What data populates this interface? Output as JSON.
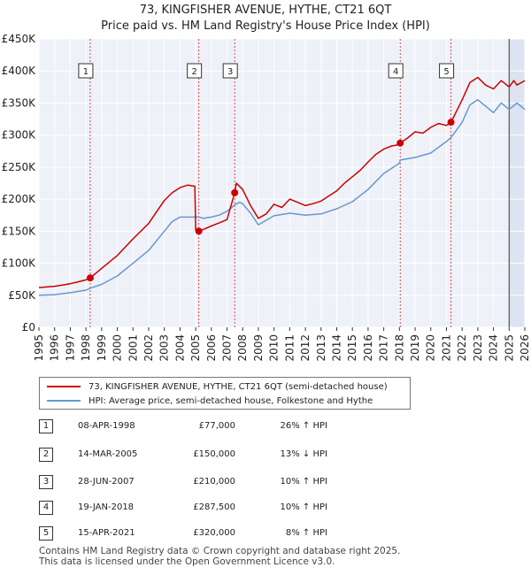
{
  "chart_data": {
    "type": "line",
    "title": "73, KINGFISHER AVENUE, HYTHE, CT21 6QT",
    "subtitle": "Price paid vs. HM Land Registry's House Price Index (HPI)",
    "xlim": [
      1995,
      2026
    ],
    "ylim": [
      0,
      450000
    ],
    "y_ticks": [
      {
        "value": 0,
        "label": "£0"
      },
      {
        "value": 50000,
        "label": "£50K"
      },
      {
        "value": 100000,
        "label": "£100K"
      },
      {
        "value": 150000,
        "label": "£150K"
      },
      {
        "value": 200000,
        "label": "£200K"
      },
      {
        "value": 250000,
        "label": "£250K"
      },
      {
        "value": 300000,
        "label": "£300K"
      },
      {
        "value": 350000,
        "label": "£350K"
      },
      {
        "value": 400000,
        "label": "£400K"
      },
      {
        "value": 450000,
        "label": "£450K"
      }
    ],
    "x_ticks": [
      "1995",
      "1996",
      "1997",
      "1998",
      "1999",
      "2000",
      "2001",
      "2002",
      "2003",
      "2004",
      "2005",
      "2006",
      "2007",
      "2008",
      "2009",
      "2010",
      "2011",
      "2012",
      "2013",
      "2014",
      "2015",
      "2016",
      "2017",
      "2018",
      "2019",
      "2020",
      "2021",
      "2022",
      "2023",
      "2024",
      "2025",
      "2026"
    ],
    "forecast_from": 2025.0,
    "colors": {
      "property": "#cc0000",
      "hpi": "#6699cc",
      "grid": "#dddddd",
      "plot_bg": "#eef1f8",
      "highlight_bg": "#dde3f0",
      "vline": "#dd4444"
    },
    "series": [
      {
        "name": "73, KINGFISHER AVENUE, HYTHE, CT21 6QT (semi-detached house)",
        "key": "property",
        "x": [
          1995.0,
          1995.5,
          1996.0,
          1996.5,
          1997.0,
          1997.5,
          1998.0,
          1998.27,
          1999.0,
          2000.0,
          2001.0,
          2002.0,
          2002.5,
          2003.0,
          2003.5,
          2004.0,
          2004.5,
          2004.95,
          2005.0,
          2005.2,
          2005.5,
          2006.0,
          2006.5,
          2007.0,
          2007.49,
          2007.6,
          2008.0,
          2008.5,
          2009.0,
          2009.5,
          2010.0,
          2010.5,
          2011.0,
          2011.5,
          2012.0,
          2012.5,
          2013.0,
          2013.5,
          2014.0,
          2014.5,
          2015.0,
          2015.5,
          2016.0,
          2016.5,
          2017.0,
          2017.5,
          2018.0,
          2018.05,
          2018.5,
          2019.0,
          2019.5,
          2020.0,
          2020.5,
          2021.0,
          2021.29,
          2021.5,
          2022.0,
          2022.5,
          2023.0,
          2023.5,
          2024.0,
          2024.5,
          2025.0,
          2025.3,
          2025.5,
          2026.0
        ],
        "y": [
          62000,
          63000,
          64000,
          66000,
          68000,
          71000,
          74000,
          77000,
          92000,
          112000,
          138000,
          162000,
          180000,
          198000,
          210000,
          218000,
          222000,
          220000,
          152000,
          150000,
          153000,
          158000,
          163000,
          168000,
          210000,
          225000,
          215000,
          190000,
          170000,
          177000,
          192000,
          187000,
          200000,
          195000,
          190000,
          193000,
          197000,
          205000,
          213000,
          225000,
          235000,
          245000,
          258000,
          270000,
          278000,
          283000,
          285000,
          287500,
          295000,
          305000,
          303000,
          312000,
          318000,
          315000,
          320000,
          330000,
          355000,
          382000,
          390000,
          378000,
          372000,
          385000,
          375000,
          385000,
          378000,
          385000
        ]
      },
      {
        "name": "HPI: Average price, semi-detached house, Folkestone and Hythe",
        "key": "hpi",
        "x": [
          1995.0,
          1996.0,
          1997.0,
          1998.0,
          1998.27,
          1999.0,
          2000.0,
          2001.0,
          2002.0,
          2003.0,
          2003.5,
          2004.0,
          2004.5,
          2005.0,
          2005.2,
          2005.5,
          2006.0,
          2006.5,
          2007.0,
          2007.49,
          2007.8,
          2008.0,
          2008.5,
          2009.0,
          2009.5,
          2010.0,
          2011.0,
          2012.0,
          2013.0,
          2014.0,
          2015.0,
          2016.0,
          2017.0,
          2018.0,
          2018.05,
          2019.0,
          2020.0,
          2021.0,
          2021.29,
          2022.0,
          2022.5,
          2023.0,
          2023.5,
          2024.0,
          2024.5,
          2025.0,
          2025.5,
          2026.0
        ],
        "y": [
          50000,
          51000,
          54000,
          58000,
          61000,
          67000,
          80000,
          100000,
          120000,
          150000,
          165000,
          172000,
          172000,
          172000,
          172000,
          170000,
          172000,
          175000,
          181000,
          191000,
          195000,
          193000,
          178000,
          160000,
          167000,
          174000,
          178000,
          175000,
          177000,
          185000,
          196000,
          215000,
          240000,
          256000,
          261000,
          265000,
          272000,
          290000,
          296000,
          320000,
          347000,
          355000,
          345000,
          335000,
          350000,
          340000,
          350000,
          340000
        ]
      }
    ],
    "sales": [
      {
        "n": "1",
        "x": 1998.27,
        "price": 77000,
        "date": "08-APR-1998",
        "price_label": "£77,000",
        "hpi_label": "26% ↑ HPI"
      },
      {
        "n": "2",
        "x": 2005.2,
        "price": 150000,
        "date": "14-MAR-2005",
        "price_label": "£150,000",
        "hpi_label": "13% ↓ HPI"
      },
      {
        "n": "3",
        "x": 2007.49,
        "price": 210000,
        "date": "28-JUN-2007",
        "price_label": "£210,000",
        "hpi_label": "10% ↑ HPI"
      },
      {
        "n": "4",
        "x": 2018.05,
        "price": 287500,
        "date": "19-JAN-2018",
        "price_label": "£287,500",
        "hpi_label": "10% ↑ HPI"
      },
      {
        "n": "5",
        "x": 2021.29,
        "price": 320000,
        "date": "15-APR-2021",
        "price_label": "£320,000",
        "hpi_label": "8% ↑ HPI"
      }
    ],
    "legend": [
      {
        "label": "73, KINGFISHER AVENUE, HYTHE, CT21 6QT (semi-detached house)",
        "key": "property"
      },
      {
        "label": "HPI: Average price, semi-detached house, Folkestone and Hythe",
        "key": "hpi"
      }
    ]
  },
  "footer": {
    "line1": "Contains HM Land Registry data © Crown copyright and database right 2025.",
    "line2": "This data is licensed under the Open Government Licence v3.0."
  }
}
